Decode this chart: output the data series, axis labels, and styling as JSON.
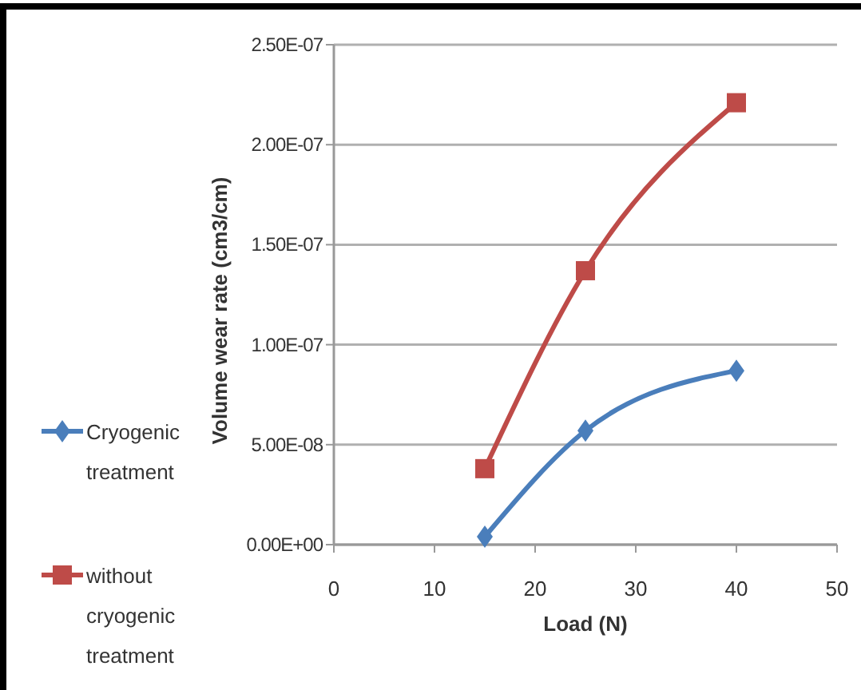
{
  "chart_data": {
    "type": "line",
    "xlabel": "Load (N)",
    "ylabel": "Volume wear rate (cm3/cm)",
    "xlim": [
      0,
      50
    ],
    "xticks": [
      0,
      10,
      20,
      30,
      40,
      50
    ],
    "ylim": [
      0,
      2.5e-07
    ],
    "yticks": [
      {
        "value": 0,
        "label": "0.00E+00"
      },
      {
        "value": 5e-08,
        "label": "5.00E-08"
      },
      {
        "value": 1e-07,
        "label": "1.00E-07"
      },
      {
        "value": 1.5e-07,
        "label": "1.50E-07"
      },
      {
        "value": 2e-07,
        "label": "2.00E-07"
      },
      {
        "value": 2.5e-07,
        "label": "2.50E-07"
      }
    ],
    "grid": "y",
    "legend": "left",
    "line_style": "solid",
    "series": [
      {
        "name": "Cryogenic treatment",
        "color": "#4a7ebb",
        "marker": "diamond",
        "x": [
          15,
          25,
          40
        ],
        "values": [
          4e-09,
          5.7e-08,
          8.7e-08
        ]
      },
      {
        "name": "without cryogenic treatment",
        "color": "#be4b48",
        "marker": "square",
        "x": [
          15,
          25,
          40
        ],
        "values": [
          3.8e-08,
          1.37e-07,
          2.21e-07
        ]
      }
    ]
  }
}
